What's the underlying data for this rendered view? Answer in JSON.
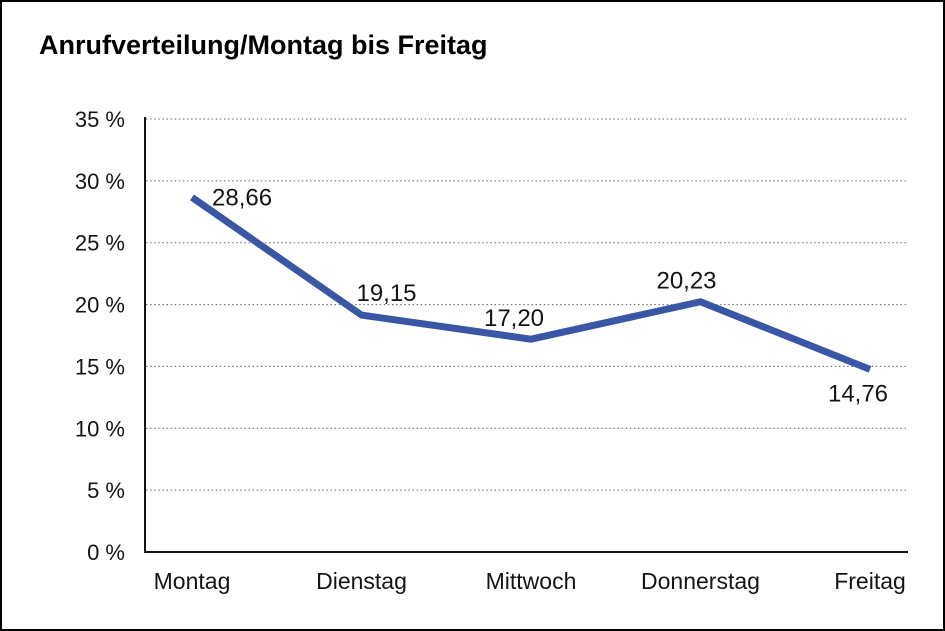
{
  "title": "Anrufverteilung/Montag bis Freitag",
  "chart_data": {
    "type": "line",
    "title": "Anrufverteilung/Montag bis Freitag",
    "categories": [
      "Montag",
      "Dienstag",
      "Mittwoch",
      "Donnerstag",
      "Freitag"
    ],
    "series": [
      {
        "name": "Anrufverteilung",
        "values": [
          28.66,
          19.15,
          17.2,
          20.23,
          14.76
        ]
      }
    ],
    "point_labels": [
      "28,66",
      "19,15",
      "17,20",
      "20,23",
      "14,76"
    ],
    "ylabel": "",
    "xlabel": "",
    "ylim": [
      0,
      35
    ],
    "ytick_step": 5,
    "ytick_labels": [
      "0 %",
      "5 %",
      "10 %",
      "15 %",
      "20 %",
      "25 %",
      "30 %",
      "35 %"
    ],
    "grid": "horizontal-dotted",
    "legend_position": "none",
    "line_color": "#3A57A5",
    "axis_color": "#141414",
    "grid_color": "#616161",
    "background_color": "#ffffff",
    "frame_border_color": "#000000"
  }
}
